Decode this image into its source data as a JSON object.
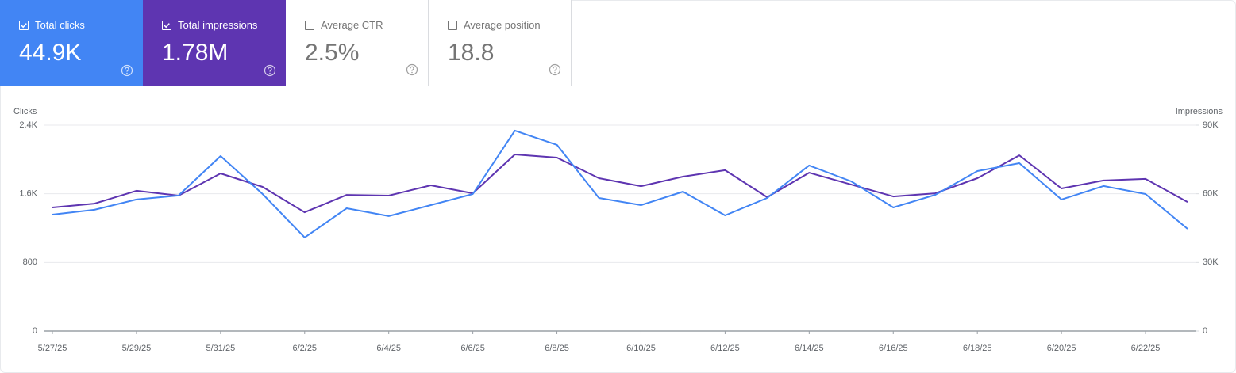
{
  "metrics": [
    {
      "label": "Total clicks",
      "value": "44.9K",
      "checked": true
    },
    {
      "label": "Total impressions",
      "value": "1.78M",
      "checked": true
    },
    {
      "label": "Average CTR",
      "value": "2.5%",
      "checked": false
    },
    {
      "label": "Average position",
      "value": "18.8",
      "checked": false
    }
  ],
  "chart_data": {
    "type": "line",
    "y_label": "Clicks",
    "y2_label": "Impressions",
    "categories": [
      "5/27/25",
      null,
      "5/29/25",
      null,
      "5/31/25",
      null,
      "6/2/25",
      null,
      "6/4/25",
      null,
      "6/6/25",
      null,
      "6/8/25",
      null,
      "6/10/25",
      null,
      "6/12/25",
      null,
      "6/14/25",
      null,
      "6/16/25",
      null,
      "6/18/25",
      null,
      "6/20/25",
      null,
      "6/22/25",
      null
    ],
    "series": [
      {
        "name": "Clicks",
        "color": "#4285f4",
        "values": [
          1357,
          1413,
          1533,
          1579,
          2040,
          1597,
          1090,
          1431,
          1339,
          1468,
          1597,
          2336,
          2170,
          1551,
          1468,
          1625,
          1348,
          1551,
          1930,
          1745,
          1440,
          1588,
          1865,
          1957,
          1533,
          1690,
          1597,
          1191
        ]
      },
      {
        "name": "Impressions",
        "color": "#5e35b1",
        "axis": "y2",
        "values": [
          54000,
          55700,
          61300,
          59200,
          68900,
          63000,
          51900,
          59500,
          59200,
          63700,
          60200,
          77200,
          75800,
          66800,
          63300,
          67500,
          70300,
          58500,
          69200,
          64000,
          58800,
          60200,
          66800,
          76800,
          62300,
          65800,
          66500,
          56400
        ]
      }
    ],
    "ylim": [
      0,
      2400
    ],
    "yticks": [
      0,
      800,
      {
        "value": 1600,
        "label": "1.6K"
      },
      {
        "value": 2400,
        "label": "2.4K"
      }
    ],
    "y2lim": [
      0,
      90000
    ],
    "y2ticks": [
      0,
      {
        "value": 30000,
        "label": "30K"
      },
      {
        "value": 60000,
        "label": "60K"
      },
      {
        "value": 90000,
        "label": "90K"
      }
    ],
    "grid": true
  }
}
